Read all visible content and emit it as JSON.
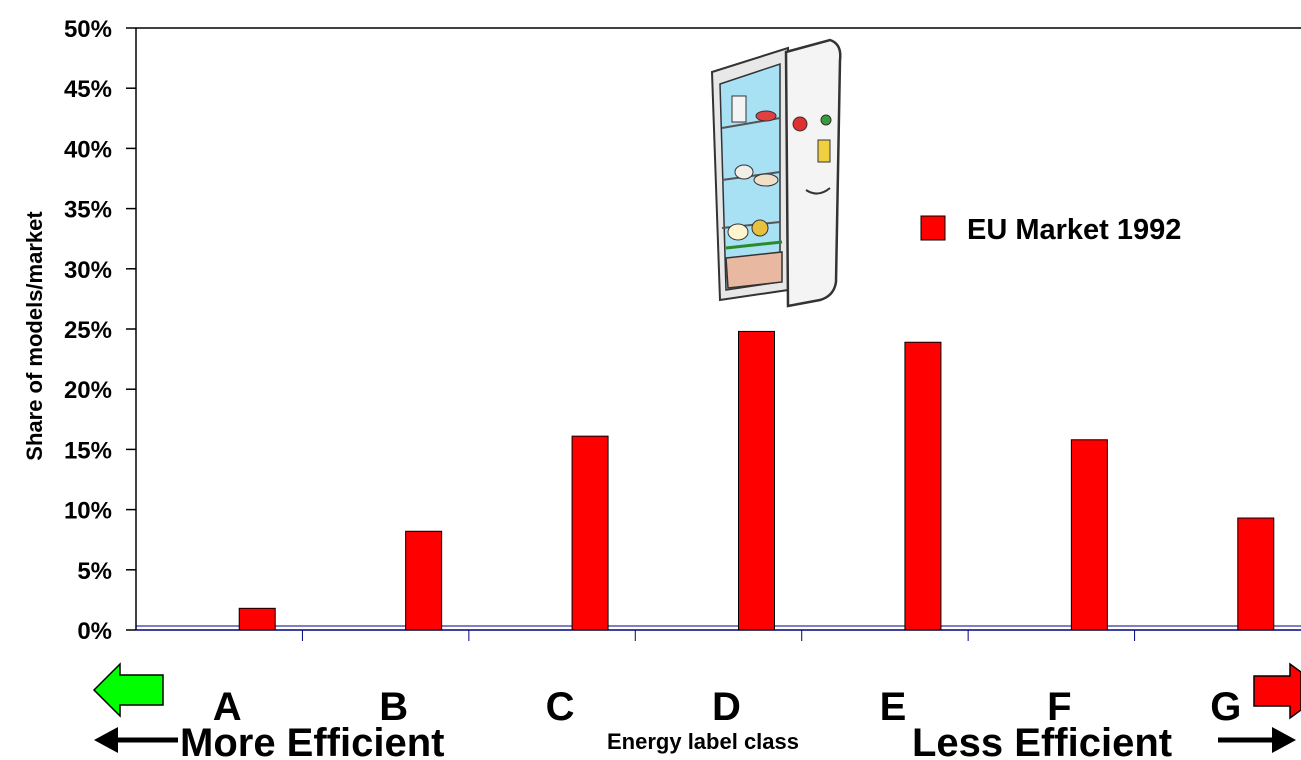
{
  "chart_data": {
    "type": "bar",
    "categories": [
      "A",
      "B",
      "C",
      "D",
      "E",
      "F",
      "G"
    ],
    "series": [
      {
        "name": "EU Market 1992",
        "values": [
          1.8,
          8.2,
          16.1,
          24.8,
          23.9,
          15.8,
          9.3
        ],
        "color": "#ff0000"
      }
    ],
    "ylabel": "Share of models/market",
    "xlabel": "Energy label class",
    "ylim": [
      0,
      50
    ],
    "yticks": [
      "0%",
      "5%",
      "10%",
      "15%",
      "20%",
      "25%",
      "30%",
      "35%",
      "40%",
      "45%",
      "50%"
    ],
    "grid": false,
    "legend_position": "right",
    "annotations": {
      "left": "More Efficient",
      "right": "Less Efficient"
    },
    "colors": {
      "bar": "#ff0000",
      "axis": "#000080",
      "left_arrow": "#00ff00",
      "right_arrow": "#ff0000"
    },
    "icons": [
      "refrigerator-illustration",
      "green-arrow-icon",
      "red-arrow-icon",
      "left-arrow-icon",
      "right-arrow-icon"
    ]
  }
}
